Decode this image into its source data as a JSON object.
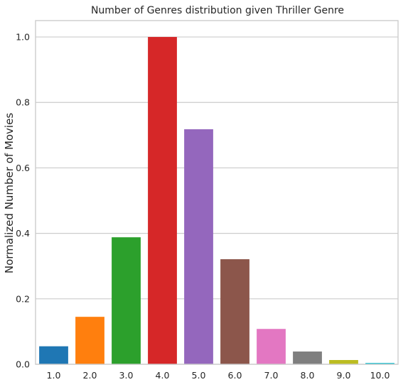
{
  "chart_data": {
    "type": "bar",
    "title": "Number of Genres distribution given Thriller Genre",
    "xlabel": "",
    "ylabel": "Normalized Number of Movies",
    "categories": [
      "1.0",
      "2.0",
      "3.0",
      "4.0",
      "5.0",
      "6.0",
      "7.0",
      "8.0",
      "9.0",
      "10.0"
    ],
    "values": [
      0.055,
      0.145,
      0.388,
      1.0,
      0.718,
      0.321,
      0.108,
      0.039,
      0.013,
      0.004
    ],
    "colors": [
      "#1f77b4",
      "#ff7f0e",
      "#2ca02c",
      "#d62728",
      "#9467bd",
      "#8c564b",
      "#e377c2",
      "#7f7f7f",
      "#bcbd22",
      "#17becf"
    ],
    "ylim": [
      0,
      1.05
    ],
    "yticks": [
      0.0,
      0.2,
      0.4,
      0.6,
      0.8,
      1.0
    ],
    "ytick_labels": [
      "0.0",
      "0.2",
      "0.4",
      "0.6",
      "0.8",
      "1.0"
    ],
    "grid": true,
    "grid_color": "#cccccc"
  }
}
